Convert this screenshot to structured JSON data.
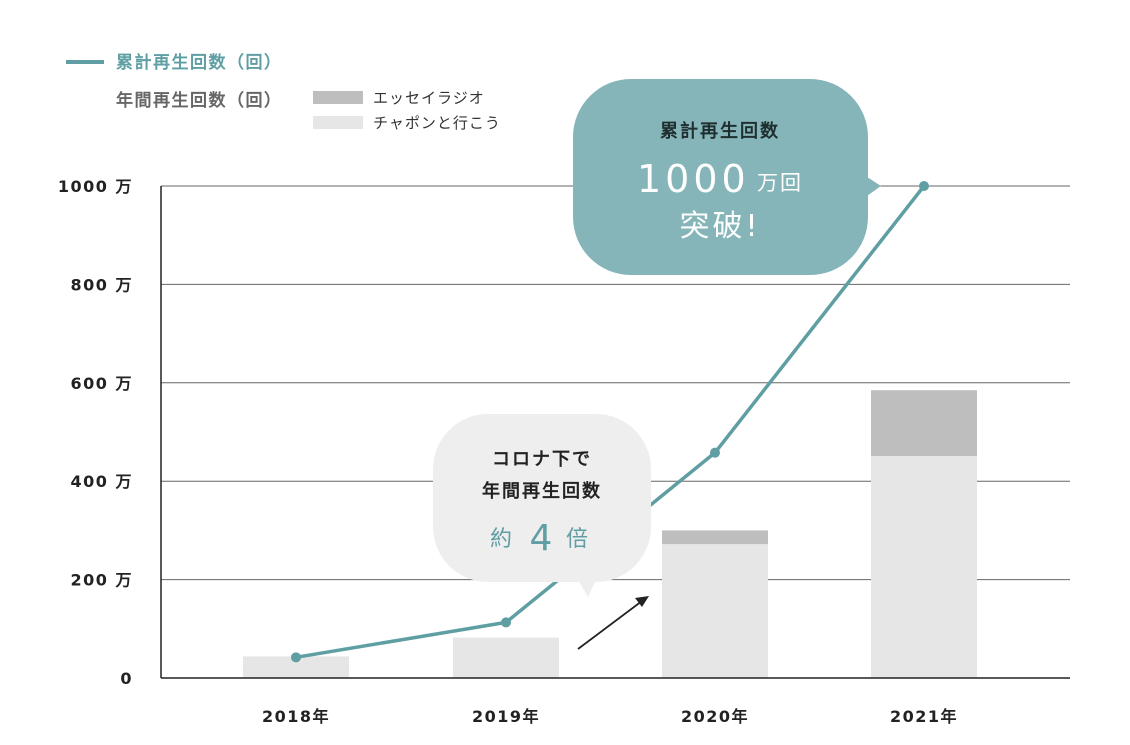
{
  "legend": {
    "cumulative_label": "累計再生回数（回）",
    "annual_label": "年間再生回数（回）",
    "series_labels": [
      "エッセイラジオ",
      "チャポンと行こう"
    ]
  },
  "callout_top": {
    "line1": "累計再生回数",
    "number": "1000",
    "unit": "万回",
    "line3": "突破!"
  },
  "callout_mid": {
    "line1": "コロナ下で",
    "line2": "年間再生回数",
    "prefix": "約",
    "number": "4",
    "suffix": "倍"
  },
  "colors": {
    "teal": "#5f9ea2",
    "bubble_teal": "#85b5b8",
    "bubble_gray": "#eeeeee",
    "bar_light": "#e6e6e6",
    "bar_dark": "#bebebe",
    "grid": "#666666"
  },
  "chart_data": {
    "type": "bar",
    "categories": [
      "2018年",
      "2019年",
      "2020年",
      "2021年"
    ],
    "ylim": [
      0,
      1000
    ],
    "y_ticks": [
      {
        "value": 0,
        "label": "0"
      },
      {
        "value": 200,
        "label": "200 万"
      },
      {
        "value": 400,
        "label": "400 万"
      },
      {
        "value": 600,
        "label": "600 万"
      },
      {
        "value": 800,
        "label": "800 万"
      },
      {
        "value": 1000,
        "label": "1000 万"
      }
    ],
    "series": [
      {
        "name": "チャポンと行こう",
        "kind": "bar-stacked",
        "values": [
          44,
          82,
          272,
          451
        ]
      },
      {
        "name": "エッセイラジオ",
        "kind": "bar-stacked",
        "values": [
          0,
          0,
          28,
          134
        ]
      },
      {
        "name": "累計再生回数（回）",
        "kind": "line",
        "values": [
          42,
          113,
          458,
          1000
        ]
      }
    ]
  }
}
